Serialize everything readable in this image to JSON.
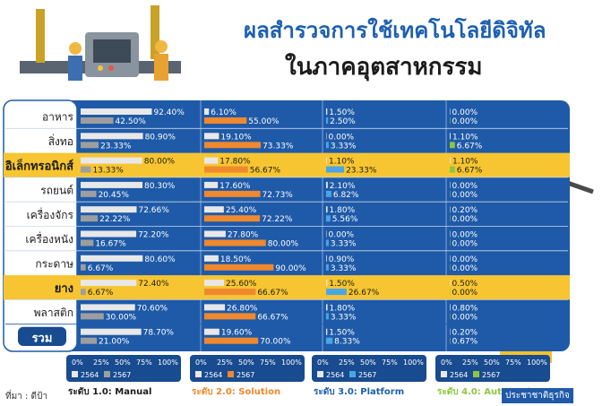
{
  "title_line1": "ผลสำรวจการใช้เทคโนโลยีดิจิทัล",
  "title_line2": "ในภาคอุตสาหกรรม",
  "source": "ที่มา : ดีป้า",
  "credit": "ประชาชาติธุรกิจ",
  "colors": {
    "panel": "#1f5aa8",
    "panel_dark": "#184b8f",
    "highlight": "#f7c531",
    "bar_2564": "#e8e8e8",
    "bar_2567": "#9e9e9e",
    "level1_text": "#1b1b1b",
    "level2_text": "#f0882e",
    "level3_text": "#1c5fb0",
    "level4_text": "#8dc63f"
  },
  "chart_data": {
    "type": "bar",
    "orientation": "horizontal",
    "categories": [
      "อาหาร",
      "สิ่งทอ",
      "อิเล็กทรอนิกส์",
      "รถยนต์",
      "เครื่องจักร",
      "เครื่องหนัง",
      "กระดาษ",
      "ยาง",
      "พลาสติก",
      "รวม"
    ],
    "highlighted_categories": [
      "อิเล็กทรอนิกส์",
      "ยาง"
    ],
    "years": [
      "2564",
      "2567"
    ],
    "axis_ticks": [
      "0%",
      "25%",
      "50%",
      "75%",
      "100%"
    ],
    "xlim": [
      0,
      100
    ],
    "panels": [
      {
        "name": "ระดับ 1.0: Manual",
        "series": [
          {
            "name": "2564",
            "values": [
              92.4,
              80.9,
              80.0,
              80.3,
              72.66,
              72.2,
              80.6,
              72.4,
              70.6,
              78.7
            ]
          },
          {
            "name": "2567",
            "values": [
              42.5,
              23.33,
              13.33,
              20.45,
              22.22,
              16.67,
              6.67,
              6.67,
              30.0,
              21.0
            ]
          }
        ]
      },
      {
        "name": "ระดับ 2.0: Solution",
        "series": [
          {
            "name": "2564",
            "values": [
              6.1,
              19.1,
              17.8,
              17.6,
              25.4,
              27.8,
              18.5,
              25.6,
              26.8,
              19.6
            ]
          },
          {
            "name": "2567",
            "values": [
              55.0,
              73.33,
              56.67,
              72.73,
              72.22,
              80.0,
              90.0,
              66.67,
              66.67,
              70.0
            ]
          }
        ]
      },
      {
        "name": "ระดับ 3.0: Platform",
        "series": [
          {
            "name": "2564",
            "values": [
              1.5,
              0.0,
              1.1,
              2.1,
              1.8,
              0.0,
              0.9,
              1.5,
              1.8,
              1.5
            ]
          },
          {
            "name": "2567",
            "values": [
              2.5,
              3.33,
              23.33,
              6.82,
              5.56,
              3.33,
              3.33,
              26.67,
              3.33,
              8.33
            ]
          }
        ]
      },
      {
        "name": "ระดับ 4.0: Automation",
        "series": [
          {
            "name": "2564",
            "values": [
              0.0,
              1.1,
              1.1,
              0.0,
              0.2,
              0.0,
              0.0,
              0.5,
              0.8,
              0.2
            ]
          },
          {
            "name": "2567",
            "values": [
              0.0,
              6.67,
              6.67,
              0.0,
              0.0,
              0.0,
              0.0,
              0.0,
              0.0,
              0.67
            ]
          }
        ]
      }
    ]
  }
}
